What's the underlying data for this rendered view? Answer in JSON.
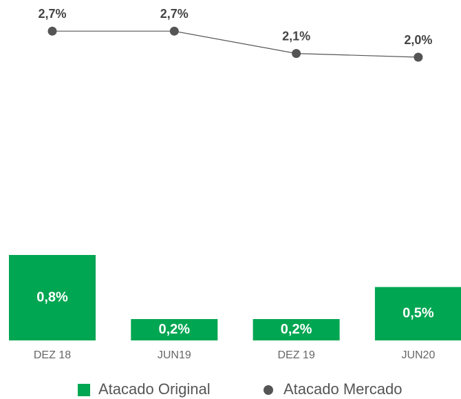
{
  "chart_data": {
    "type": "combo",
    "categories": [
      "DEZ 18",
      "JUN19",
      "DEZ 19",
      "JUN20"
    ],
    "series": [
      {
        "name": "Atacado Original",
        "type": "bar",
        "color": "#00a651",
        "values": [
          0.8,
          0.2,
          0.2,
          0.5
        ],
        "value_labels": [
          "0,8%",
          "0,2%",
          "0,2%",
          "0,5%"
        ]
      },
      {
        "name": "Atacado Mercado",
        "type": "line",
        "axis": "y2",
        "color": "#555555",
        "values": [
          2.7,
          2.7,
          2.1,
          2.0
        ],
        "value_labels": [
          "2,7%",
          "2,7%",
          "2,1%",
          "2,0%"
        ]
      }
    ],
    "ylim": [
      0,
      1
    ],
    "y2lim": [
      0,
      3
    ],
    "legend": "bottom"
  }
}
